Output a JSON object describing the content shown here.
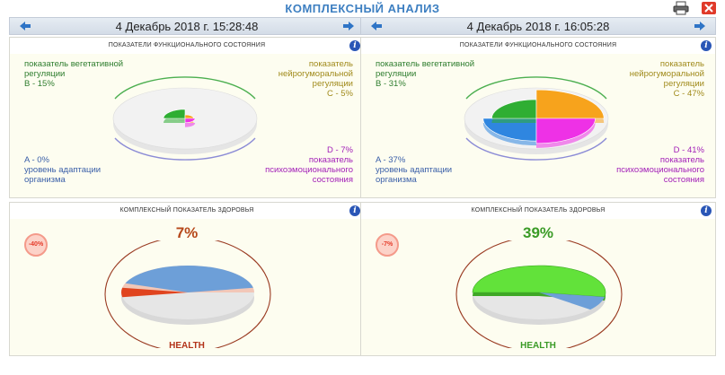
{
  "app": {
    "title": "КОМПЛЕКСНЫЙ АНАЛИЗ",
    "tools": {
      "print_icon": "printer-icon",
      "close_icon": "close-icon"
    }
  },
  "panels": [
    {
      "date": "4 Декабрь 2018 г. 15:28:48",
      "functional": {
        "title": "ПОКАЗАТЕЛИ ФУНКЦИОНАЛЬНОГО СОСТОЯНИЯ",
        "b_label": "показатель вегетативной регуляции",
        "b_value": "B - 15%",
        "c_label": "показатель нейрогуморальной регуляции",
        "c_value": "C - 5%",
        "a_value": "A - 0%",
        "a_label": "уровень адаптации организма",
        "d_value": "D - 7%",
        "d_label": "показатель психоэмоционального состояния",
        "segments": {
          "A": 0,
          "B": 15,
          "C": 5,
          "D": 7
        }
      },
      "health": {
        "title": "КОМПЛЕКСНЫЙ ПОКАЗАТЕЛЬ ЗДОРОВЬЯ",
        "value": "7%",
        "value_num": 7,
        "badge": "-40%",
        "label": "HEALTH",
        "value_color": "#b6481a",
        "label_color": "#b3331a"
      }
    },
    {
      "date": "4 Декабрь 2018 г. 16:05:28",
      "functional": {
        "title": "ПОКАЗАТЕЛИ ФУНКЦИОНАЛЬНОГО СОСТОЯНИЯ",
        "b_label": "показатель вегетативной регуляции",
        "b_value": "B - 31%",
        "c_label": "показатель нейрогуморальной регуляции",
        "c_value": "C - 47%",
        "a_value": "A - 37%",
        "a_label": "уровень адаптации организма",
        "d_value": "D - 41%",
        "d_label": "показатель психоэмоционального состояния",
        "segments": {
          "A": 37,
          "B": 31,
          "C": 47,
          "D": 41
        }
      },
      "health": {
        "title": "КОМПЛЕКСНЫЙ ПОКАЗАТЕЛЬ ЗДОРОВЬЯ",
        "value": "39%",
        "value_num": 39,
        "badge": "-7%",
        "label": "HEALTH",
        "value_color": "#3a9b26",
        "label_color": "#3a9b26"
      }
    }
  ],
  "colors": {
    "A": "#2f86e0",
    "B": "#2fae33",
    "C": "#f7a31c",
    "D": "#ee31e6",
    "blue_ring": "#5e8fd4",
    "brown_ring": "#9a3b22"
  }
}
